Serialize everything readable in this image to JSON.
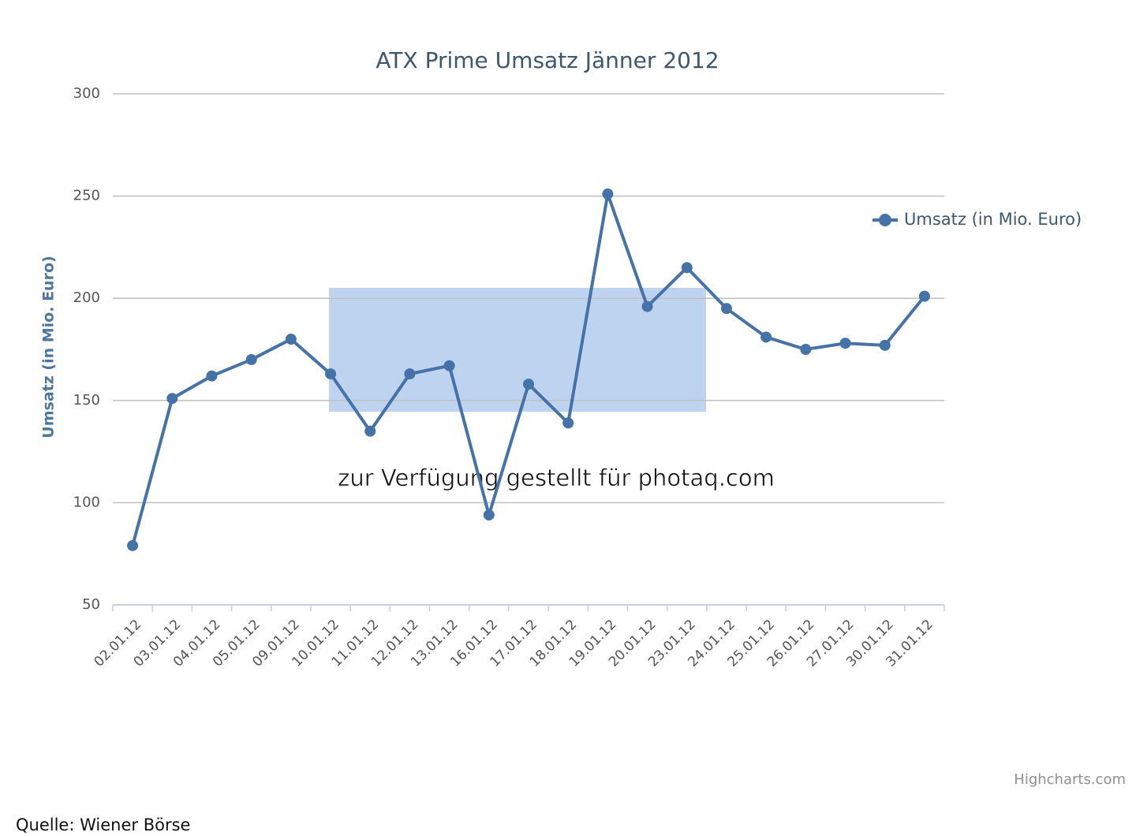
{
  "chart_data": {
    "type": "line",
    "title": "ATX Prime Umsatz Jänner 2012",
    "y_axis_label": "Umsatz (in Mio. Euro)",
    "categories": [
      "02.01.12",
      "03.01.12",
      "04.01.12",
      "05.01.12",
      "09.01.12",
      "10.01.12",
      "11.01.12",
      "12.01.12",
      "13.01.12",
      "16.01.12",
      "17.01.12",
      "18.01.12",
      "19.01.12",
      "20.01.12",
      "23.01.12",
      "24.01.12",
      "25.01.12",
      "26.01.12",
      "27.01.12",
      "30.01.12",
      "31.01.12"
    ],
    "series": [
      {
        "name": "Umsatz (in Mio. Euro)",
        "color": "#4572a7",
        "values": [
          79,
          151,
          162,
          170,
          180,
          163,
          135,
          163,
          167,
          94,
          158,
          139,
          251,
          196,
          215,
          195,
          181,
          175,
          178,
          177,
          201
        ]
      }
    ],
    "ylim": [
      50,
      300
    ],
    "yticks": [
      50,
      100,
      150,
      200,
      250,
      300
    ],
    "grid": true,
    "legend": "right",
    "watermark": "zur Verfügung gestellt für photaq.com",
    "credits": "Highcharts.com",
    "source": "Quelle: Wiener Börse"
  }
}
